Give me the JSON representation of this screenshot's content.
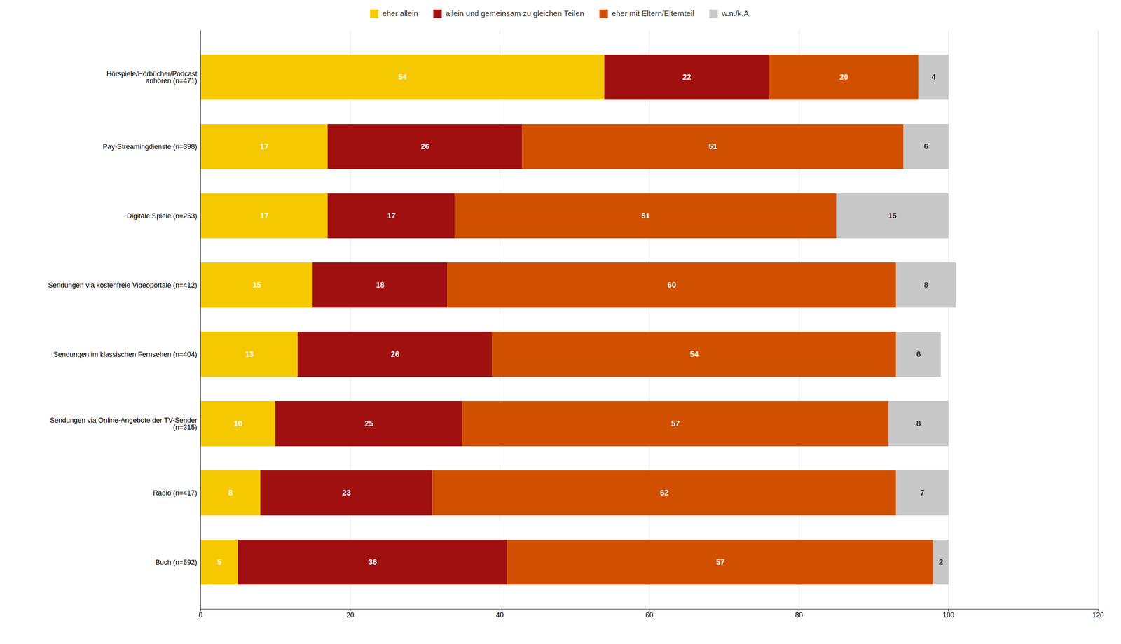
{
  "chart_data": {
    "type": "bar",
    "orientation": "horizontal",
    "stacked": true,
    "categories": [
      "Hörspiele/Hörbücher/Podcast\nanhören (n=471)",
      "Pay-Streamingdienste (n=398)",
      "Digitale Spiele (n=253)",
      "Sendungen via kostenfreie Videoportale (n=412)",
      "Sendungen im klassischen Fernsehen (n=404)",
      "Sendungen via Online-Angebote der TV-Sender\n(n=315)",
      "Radio (n=417)",
      "Buch (n=592)"
    ],
    "series": [
      {
        "name": "eher allein",
        "color": "#F5C800",
        "values": [
          54,
          17,
          17,
          15,
          13,
          10,
          8,
          5
        ]
      },
      {
        "name": "allein und gemeinsam zu gleichen Teilen",
        "color": "#A01010",
        "values": [
          22,
          26,
          17,
          18,
          26,
          25,
          23,
          36
        ]
      },
      {
        "name": "eher mit Eltern/Elternteil",
        "color": "#D05000",
        "values": [
          20,
          51,
          51,
          60,
          54,
          57,
          62,
          57
        ]
      },
      {
        "name": "w.n./k.A.",
        "color": "#C8C8C8",
        "values": [
          4,
          6,
          15,
          8,
          6,
          8,
          7,
          2
        ]
      }
    ],
    "xlim": [
      0,
      120
    ],
    "xticks": [
      0,
      20,
      40,
      60,
      80,
      100,
      120
    ],
    "grid": true,
    "legend": "top",
    "data_labels": true
  }
}
